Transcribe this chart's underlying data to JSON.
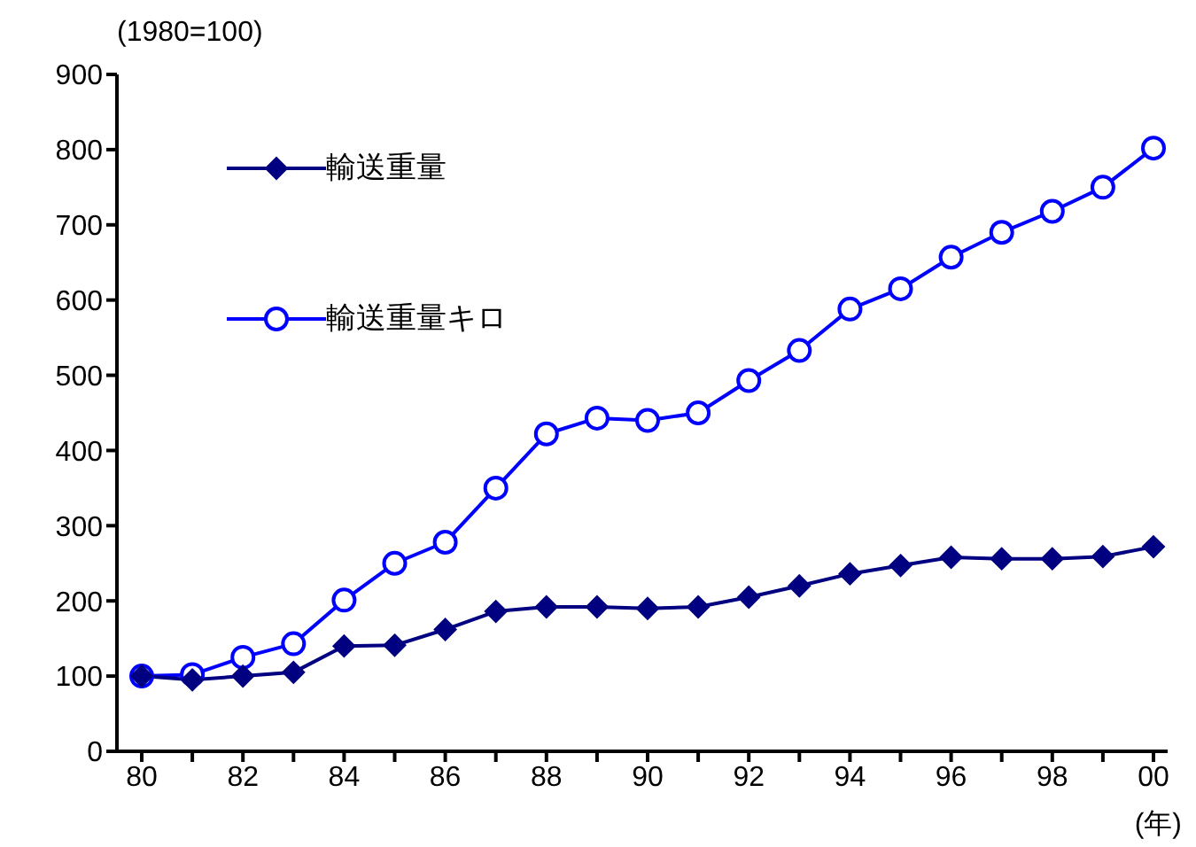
{
  "chart_data": {
    "type": "line",
    "ylabel": "(1980=100)",
    "xlabel": "(年)",
    "categories": [
      "80",
      null,
      "82",
      null,
      "84",
      null,
      "86",
      null,
      "88",
      null,
      "90",
      null,
      "92",
      null,
      "94",
      null,
      "96",
      null,
      "98",
      null,
      "00"
    ],
    "series": [
      {
        "name": "輸送重量",
        "color": "#000080",
        "marker": "diamond",
        "values": [
          100,
          95,
          100,
          105,
          140,
          141,
          162,
          186,
          192,
          192,
          190,
          192,
          205,
          220,
          236,
          247,
          258,
          256,
          256,
          259,
          272
        ]
      },
      {
        "name": "輸送重量キロ",
        "color": "#0000ff",
        "marker": "circle",
        "values": [
          100,
          102,
          125,
          143,
          201,
          250,
          278,
          350,
          422,
          443,
          440,
          450,
          493,
          533,
          588,
          615,
          657,
          690,
          718,
          750,
          802
        ]
      }
    ],
    "ylim": [
      0,
      900
    ],
    "yticks": [
      0,
      100,
      200,
      300,
      400,
      500,
      600,
      700,
      800,
      900
    ],
    "grid": false,
    "legend": "top left",
    "line_style": "solid"
  }
}
